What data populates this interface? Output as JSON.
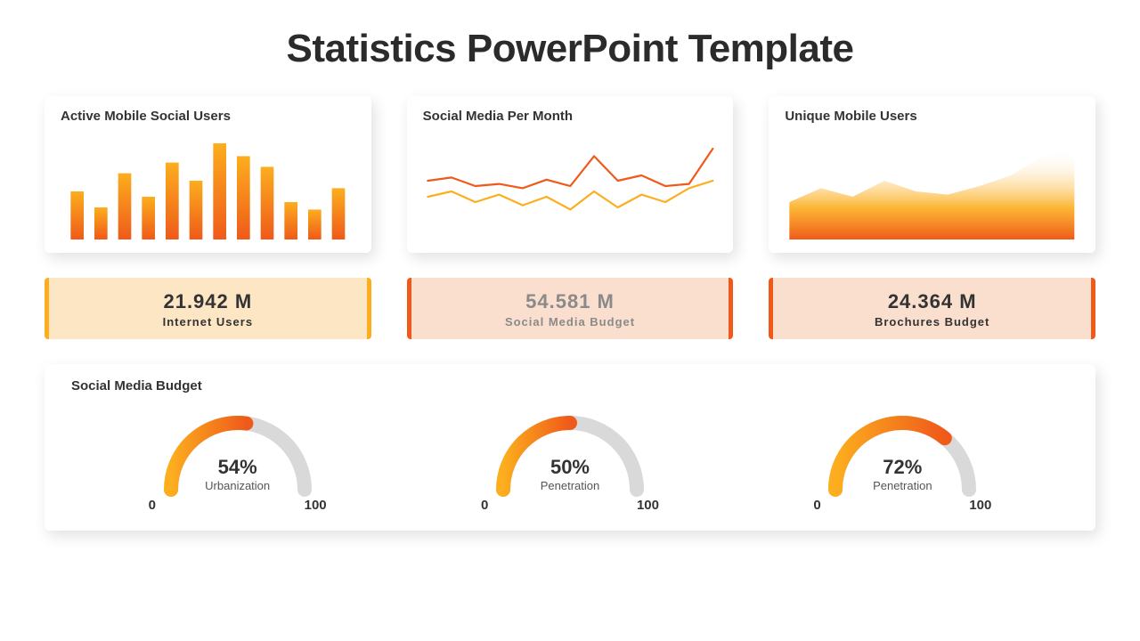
{
  "title": "Statistics PowerPoint Template",
  "palette": {
    "orange_dark": "#ef5a1a",
    "orange_light": "#fcae1e",
    "grey_track": "#d9d9d9",
    "text_dark": "#333333",
    "text_mid": "#555555"
  },
  "cards": [
    {
      "title": "Active Mobile Social Users",
      "chart": {
        "type": "bar",
        "values": [
          45,
          30,
          62,
          40,
          72,
          55,
          90,
          78,
          68,
          35,
          28,
          48
        ],
        "ylim": [
          0,
          100
        ],
        "bar_width": 0.55,
        "gradient_top": "#fcae1e",
        "gradient_bottom": "#ef5a1a"
      }
    },
    {
      "title": "Social Media Per Month",
      "chart": {
        "type": "line",
        "series": [
          {
            "values": [
              55,
              58,
              50,
              52,
              48,
              56,
              50,
              78,
              55,
              60,
              50,
              52,
              85
            ],
            "color": "#ef5a1a",
            "stroke_width": 2.2
          },
          {
            "values": [
              40,
              45,
              35,
              42,
              32,
              40,
              28,
              45,
              30,
              42,
              35,
              48,
              55
            ],
            "color": "#fcae1e",
            "stroke_width": 2.2
          }
        ],
        "ylim": [
          0,
          100
        ]
      }
    },
    {
      "title": "Unique Mobile Users",
      "chart": {
        "type": "area",
        "values": [
          35,
          48,
          40,
          55,
          45,
          42,
          50,
          60,
          78,
          85
        ],
        "ylim": [
          0,
          100
        ],
        "gradient_top": "#fcae1e",
        "gradient_bottom": "#ef5a1a",
        "fade_to": "#ffffff"
      }
    }
  ],
  "stats": [
    {
      "value": "21.942  M",
      "label": "Internet Users",
      "bg": "#fce6c4",
      "border": "#fcae1e",
      "text": "#333333"
    },
    {
      "value": "54.581  M",
      "label": "Social Media  Budget",
      "bg": "#fadfcf",
      "border": "#ef5a1a",
      "text": "#8a8a8a"
    },
    {
      "value": "24.364  M",
      "label": "Brochures  Budget",
      "bg": "#fadfcf",
      "border": "#ef5a1a",
      "text": "#333333"
    }
  ],
  "gauge_section": {
    "title": "Social Media Budget",
    "scale_min": "0",
    "scale_max": "100",
    "gauges": [
      {
        "pct": 54,
        "pct_label": "54%",
        "label": "Urbanization"
      },
      {
        "pct": 50,
        "pct_label": "50%",
        "label": "Penetration"
      },
      {
        "pct": 72,
        "pct_label": "72%",
        "label": "Penetration"
      }
    ],
    "track_color": "#d9d9d9",
    "fill_start": "#fcae1e",
    "fill_end": "#ef5a1a",
    "stroke_width": 16
  }
}
